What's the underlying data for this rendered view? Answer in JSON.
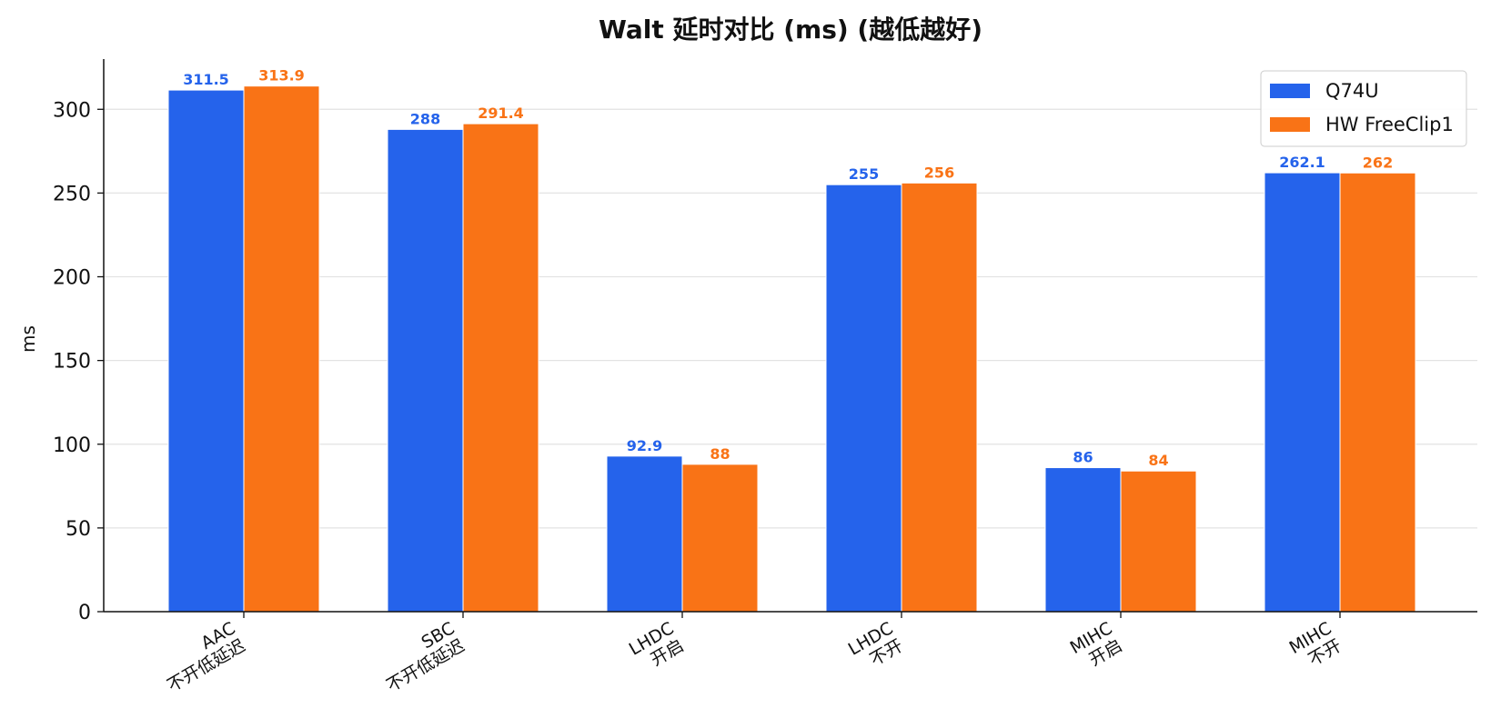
{
  "chart_data": {
    "type": "bar",
    "title": "Walt 延时对比 (ms)  (越低越好)",
    "xlabel": "",
    "ylabel": "ms",
    "ylim": [
      0,
      330
    ],
    "yticks": [
      0,
      50,
      100,
      150,
      200,
      250,
      300
    ],
    "grid": true,
    "legend_position": "top-right",
    "categories": [
      [
        "AAC",
        "不开低延迟"
      ],
      [
        "SBC",
        "不开低延迟"
      ],
      [
        "LHDC",
        "开启"
      ],
      [
        "LHDC",
        "不开"
      ],
      [
        "MIHC",
        "开启"
      ],
      [
        "MIHC",
        "不开"
      ]
    ],
    "series": [
      {
        "name": "Q74U",
        "color": "#2563eb",
        "values": [
          311.5,
          288,
          92.9,
          255,
          86,
          262.1
        ],
        "labels": [
          "311.5",
          "288",
          "92.9",
          "255",
          "86",
          "262.1"
        ]
      },
      {
        "name": "HW FreeClip1",
        "color": "#f97316",
        "values": [
          313.9,
          291.4,
          88,
          256,
          84,
          262
        ],
        "labels": [
          "313.9",
          "291.4",
          "88",
          "256",
          "84",
          "262"
        ]
      }
    ]
  }
}
